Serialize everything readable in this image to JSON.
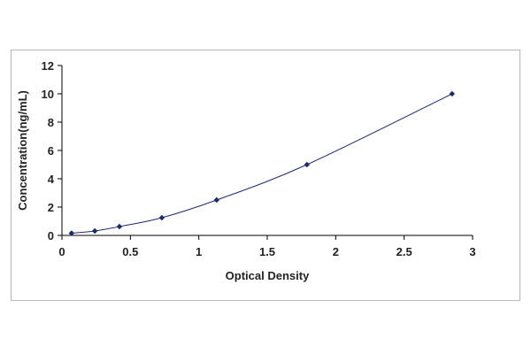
{
  "chart_data": {
    "type": "scatter",
    "title": "",
    "xlabel": "Optical Density",
    "ylabel": "Concentration(ng/mL)",
    "xlim": [
      0,
      3
    ],
    "ylim": [
      0,
      12
    ],
    "x_ticks": [
      "0",
      "0.5",
      "1",
      "1.5",
      "2",
      "2.5",
      "3"
    ],
    "y_ticks": [
      "0",
      "2",
      "4",
      "6",
      "8",
      "10",
      "12"
    ],
    "grid": false,
    "legend": "none",
    "fit": "smooth curve through points",
    "series": [
      {
        "x": [
          0.07,
          0.24,
          0.42,
          0.73,
          1.13,
          1.79,
          2.85
        ],
        "y": [
          0.156,
          0.312,
          0.625,
          1.25,
          2.5,
          5,
          10
        ],
        "color": "#1f2a6b"
      }
    ]
  }
}
